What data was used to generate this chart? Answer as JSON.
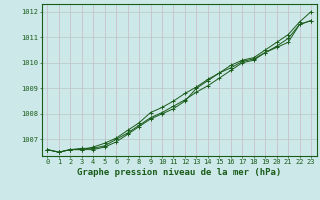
{
  "title": "Graphe pression niveau de la mer (hPa)",
  "xlabel_hours": [
    0,
    1,
    2,
    3,
    4,
    5,
    6,
    7,
    8,
    9,
    10,
    11,
    12,
    13,
    14,
    15,
    16,
    17,
    18,
    19,
    20,
    21,
    22,
    23
  ],
  "line1": [
    1006.6,
    1006.5,
    1006.6,
    1006.6,
    1006.6,
    1006.7,
    1006.9,
    1007.2,
    1007.5,
    1007.8,
    1008.0,
    1008.2,
    1008.5,
    1009.0,
    1009.3,
    1009.6,
    1009.9,
    1010.1,
    1010.2,
    1010.5,
    1010.8,
    1011.1,
    1011.6,
    1012.0
  ],
  "line2": [
    1006.6,
    1006.5,
    1006.6,
    1006.6,
    1006.7,
    1006.85,
    1007.05,
    1007.35,
    1007.65,
    1008.05,
    1008.25,
    1008.5,
    1008.8,
    1009.05,
    1009.35,
    1009.6,
    1009.8,
    1010.05,
    1010.15,
    1010.4,
    1010.65,
    1010.95,
    1011.5,
    1011.65
  ],
  "line3": [
    1006.6,
    1006.5,
    1006.6,
    1006.65,
    1006.65,
    1006.75,
    1007.0,
    1007.25,
    1007.55,
    1007.85,
    1008.05,
    1008.3,
    1008.55,
    1008.85,
    1009.1,
    1009.4,
    1009.7,
    1010.0,
    1010.1,
    1010.4,
    1010.6,
    1010.8,
    1011.5,
    1011.65
  ],
  "ylim": [
    1006.35,
    1012.3
  ],
  "yticks": [
    1007,
    1008,
    1009,
    1010,
    1011,
    1012
  ],
  "bg_color": "#cce8e8",
  "grid_color_h": "#b8c8c8",
  "grid_color_v": "#c8b8c8",
  "line_color": "#1a5c1a",
  "marker_color": "#1a5c1a",
  "title_color": "#1a5c1a",
  "title_fontsize": 6.5,
  "tick_fontsize": 5.0,
  "axis_color": "#1a5c1a",
  "ylabel_fontsize": 5.5
}
